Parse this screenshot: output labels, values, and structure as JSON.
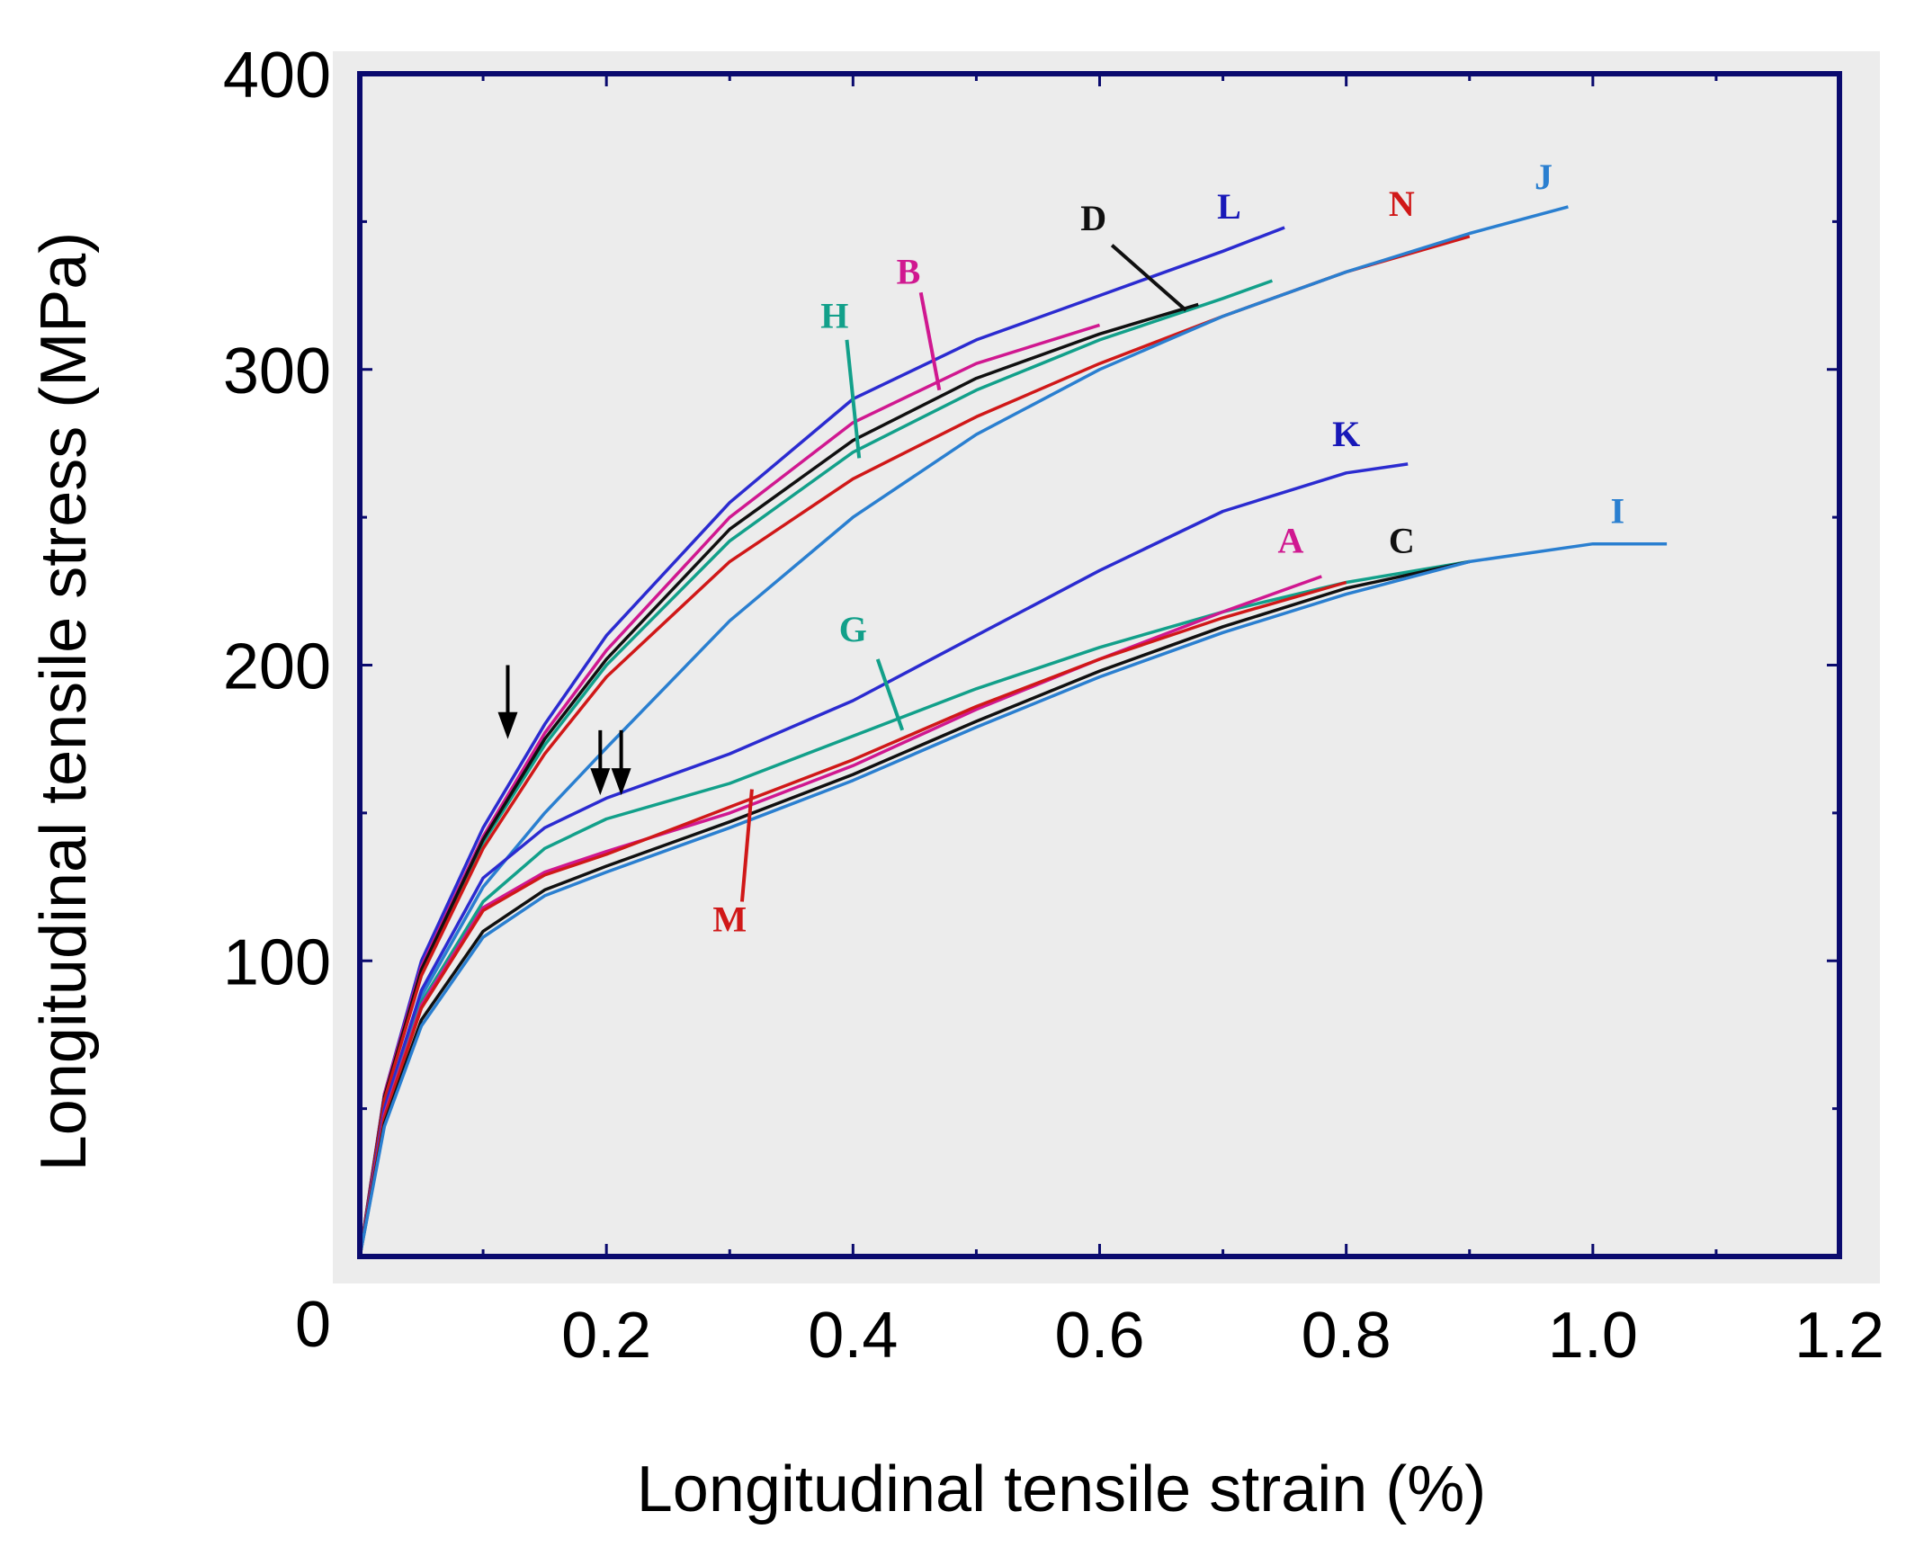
{
  "chart_data": {
    "type": "line",
    "xlabel": "Longitudinal tensile strain (%)",
    "ylabel": "Longitudinal tensile stress (MPa)",
    "xlim": [
      0,
      1.2
    ],
    "ylim": [
      0,
      400
    ],
    "x_ticks": [
      0.2,
      0.4,
      0.6,
      0.8,
      1.0,
      1.2
    ],
    "x_tick_labels": [
      "0.2",
      "0.4",
      "0.6",
      "0.8",
      "1.0",
      "1.2"
    ],
    "y_ticks": [
      0,
      100,
      200,
      300,
      400
    ],
    "y_tick_labels": [
      "0",
      "100",
      "200",
      "300",
      "400"
    ],
    "grid": false,
    "plot_background": "#ececec",
    "frame_color": "#0a0a6e",
    "series": [
      {
        "name": "L",
        "color": "#2b2bd0",
        "x": [
          0,
          0.02,
          0.05,
          0.1,
          0.15,
          0.2,
          0.3,
          0.4,
          0.5,
          0.6,
          0.7,
          0.75
        ],
        "y": [
          0,
          55,
          100,
          145,
          180,
          210,
          255,
          290,
          310,
          325,
          340,
          348
        ]
      },
      {
        "name": "B",
        "color": "#d01890",
        "x": [
          0,
          0.02,
          0.05,
          0.1,
          0.15,
          0.2,
          0.3,
          0.4,
          0.5,
          0.6
        ],
        "y": [
          0,
          55,
          98,
          142,
          177,
          205,
          250,
          282,
          302,
          315
        ]
      },
      {
        "name": "H",
        "color": "#12a08a",
        "x": [
          0,
          0.02,
          0.05,
          0.1,
          0.15,
          0.2,
          0.3,
          0.4,
          0.5,
          0.6,
          0.7,
          0.74
        ],
        "y": [
          0,
          54,
          96,
          140,
          173,
          200,
          242,
          272,
          293,
          310,
          324,
          330
        ]
      },
      {
        "name": "D",
        "color": "#101010",
        "x": [
          0,
          0.02,
          0.05,
          0.1,
          0.15,
          0.2,
          0.3,
          0.4,
          0.5,
          0.6,
          0.68
        ],
        "y": [
          0,
          54,
          97,
          141,
          175,
          202,
          246,
          276,
          297,
          312,
          322
        ]
      },
      {
        "name": "N",
        "color": "#d01818",
        "x": [
          0,
          0.02,
          0.05,
          0.1,
          0.15,
          0.2,
          0.3,
          0.4,
          0.5,
          0.6,
          0.7,
          0.8,
          0.9
        ],
        "y": [
          0,
          53,
          95,
          138,
          170,
          196,
          235,
          263,
          284,
          302,
          318,
          333,
          345
        ]
      },
      {
        "name": "J",
        "color": "#2a7fd0",
        "x": [
          0,
          0.02,
          0.05,
          0.1,
          0.15,
          0.2,
          0.3,
          0.4,
          0.5,
          0.6,
          0.7,
          0.8,
          0.9,
          0.98
        ],
        "y": [
          0,
          50,
          88,
          125,
          150,
          172,
          215,
          250,
          278,
          300,
          318,
          333,
          346,
          355
        ]
      },
      {
        "name": "K",
        "color": "#2b2bd0",
        "x": [
          0,
          0.02,
          0.05,
          0.1,
          0.15,
          0.2,
          0.3,
          0.4,
          0.5,
          0.6,
          0.7,
          0.8,
          0.85
        ],
        "y": [
          0,
          50,
          90,
          128,
          145,
          155,
          170,
          188,
          210,
          232,
          252,
          265,
          268
        ]
      },
      {
        "name": "G",
        "color": "#12a08a",
        "x": [
          0,
          0.02,
          0.05,
          0.1,
          0.15,
          0.2,
          0.3,
          0.4,
          0.5,
          0.6,
          0.7,
          0.8,
          0.9
        ],
        "y": [
          0,
          48,
          86,
          120,
          138,
          148,
          160,
          176,
          192,
          206,
          218,
          228,
          235
        ]
      },
      {
        "name": "A",
        "color": "#d01890",
        "x": [
          0,
          0.02,
          0.05,
          0.1,
          0.15,
          0.2,
          0.3,
          0.4,
          0.5,
          0.6,
          0.7,
          0.78
        ],
        "y": [
          0,
          48,
          85,
          118,
          130,
          137,
          150,
          166,
          185,
          202,
          218,
          230
        ]
      },
      {
        "name": "M",
        "color": "#d01818",
        "x": [
          0,
          0.02,
          0.05,
          0.1,
          0.15,
          0.2,
          0.3,
          0.4,
          0.5,
          0.6,
          0.7,
          0.8
        ],
        "y": [
          0,
          47,
          84,
          117,
          129,
          136,
          152,
          168,
          186,
          202,
          216,
          228
        ]
      },
      {
        "name": "C",
        "color": "#101010",
        "x": [
          0,
          0.02,
          0.05,
          0.1,
          0.15,
          0.2,
          0.3,
          0.4,
          0.5,
          0.6,
          0.7,
          0.8,
          0.9
        ],
        "y": [
          0,
          45,
          80,
          110,
          124,
          132,
          147,
          163,
          181,
          198,
          213,
          226,
          235
        ]
      },
      {
        "name": "I",
        "color": "#2a7fd0",
        "x": [
          0,
          0.02,
          0.05,
          0.1,
          0.15,
          0.2,
          0.3,
          0.4,
          0.5,
          0.6,
          0.7,
          0.8,
          0.9,
          1.0,
          1.06
        ],
        "y": [
          0,
          44,
          78,
          108,
          122,
          130,
          145,
          161,
          179,
          196,
          211,
          224,
          235,
          241,
          241
        ]
      }
    ],
    "curve_labels": [
      {
        "text": "L",
        "color": "#1818b8",
        "x": 0.705,
        "y": 351
      },
      {
        "text": "D",
        "color": "#101010",
        "x": 0.595,
        "y": 347
      },
      {
        "text": "N",
        "color": "#d01818",
        "x": 0.845,
        "y": 352
      },
      {
        "text": "J",
        "color": "#2a7fd0",
        "x": 0.96,
        "y": 361
      },
      {
        "text": "B",
        "color": "#d01890",
        "x": 0.445,
        "y": 329
      },
      {
        "text": "H",
        "color": "#12a08a",
        "x": 0.385,
        "y": 314
      },
      {
        "text": "K",
        "color": "#1818b8",
        "x": 0.8,
        "y": 274
      },
      {
        "text": "A",
        "color": "#d01890",
        "x": 0.755,
        "y": 238
      },
      {
        "text": "C",
        "color": "#101010",
        "x": 0.845,
        "y": 238
      },
      {
        "text": "I",
        "color": "#2a7fd0",
        "x": 1.02,
        "y": 248
      },
      {
        "text": "G",
        "color": "#12a08a",
        "x": 0.4,
        "y": 208
      },
      {
        "text": "M",
        "color": "#d01818",
        "x": 0.3,
        "y": 110
      }
    ],
    "leader_lines": [
      {
        "color": "#101010",
        "x1": 0.61,
        "y1": 342,
        "x2": 0.67,
        "y2": 320
      },
      {
        "color": "#d01890",
        "x1": 0.455,
        "y1": 326,
        "x2": 0.47,
        "y2": 293
      },
      {
        "color": "#12a08a",
        "x1": 0.395,
        "y1": 310,
        "x2": 0.405,
        "y2": 270
      },
      {
        "color": "#12a08a",
        "x1": 0.42,
        "y1": 202,
        "x2": 0.44,
        "y2": 178
      },
      {
        "color": "#d01818",
        "x1": 0.31,
        "y1": 120,
        "x2": 0.318,
        "y2": 158
      }
    ],
    "arrows": [
      {
        "x": 0.12,
        "y_top": 200,
        "y_tip": 175
      },
      {
        "x": 0.195,
        "y_top": 178,
        "y_tip": 156
      },
      {
        "x": 0.212,
        "y_top": 178,
        "y_tip": 156
      }
    ]
  }
}
